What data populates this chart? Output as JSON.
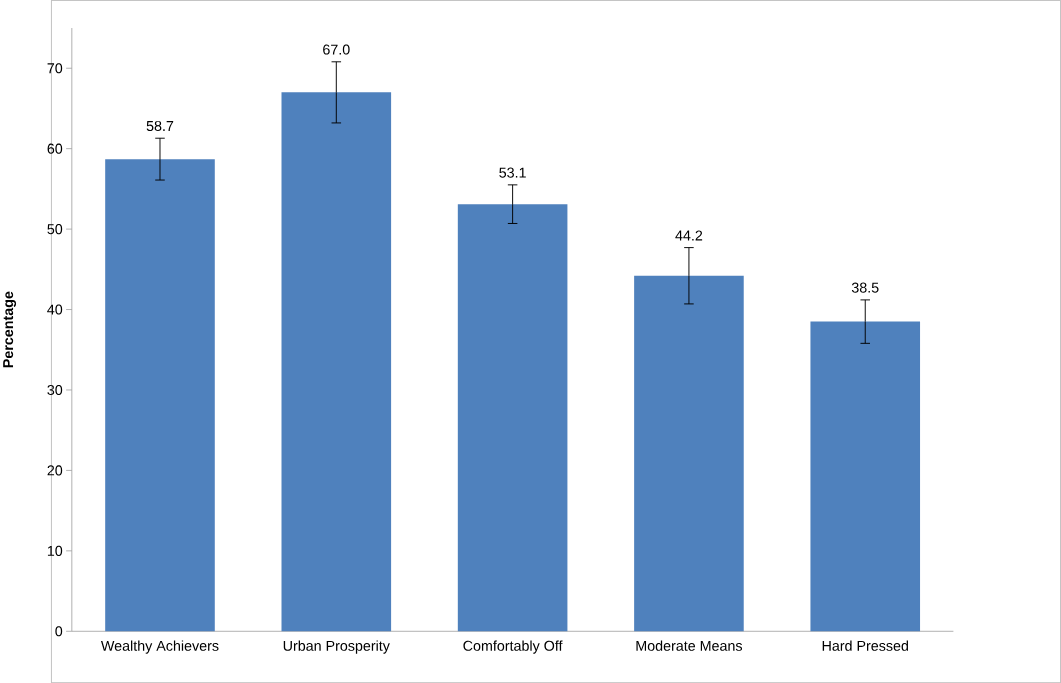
{
  "chart_data": {
    "type": "bar",
    "ylabel": "Percentage",
    "categories": [
      "Wealthy Achievers",
      "Urban Prosperity",
      "Comfortably Off",
      "Moderate Means",
      "Hard Pressed"
    ],
    "values": [
      58.7,
      67.0,
      53.1,
      44.2,
      38.5
    ],
    "value_labels": [
      "58.7",
      "67.0",
      "53.1",
      "44.2",
      "38.5"
    ],
    "errors": [
      2.6,
      3.8,
      2.4,
      3.5,
      2.7
    ],
    "color": "#4f81bd",
    "ylim": [
      0,
      75
    ],
    "yticks": [
      0,
      10,
      20,
      30,
      40,
      50,
      60,
      70
    ]
  }
}
